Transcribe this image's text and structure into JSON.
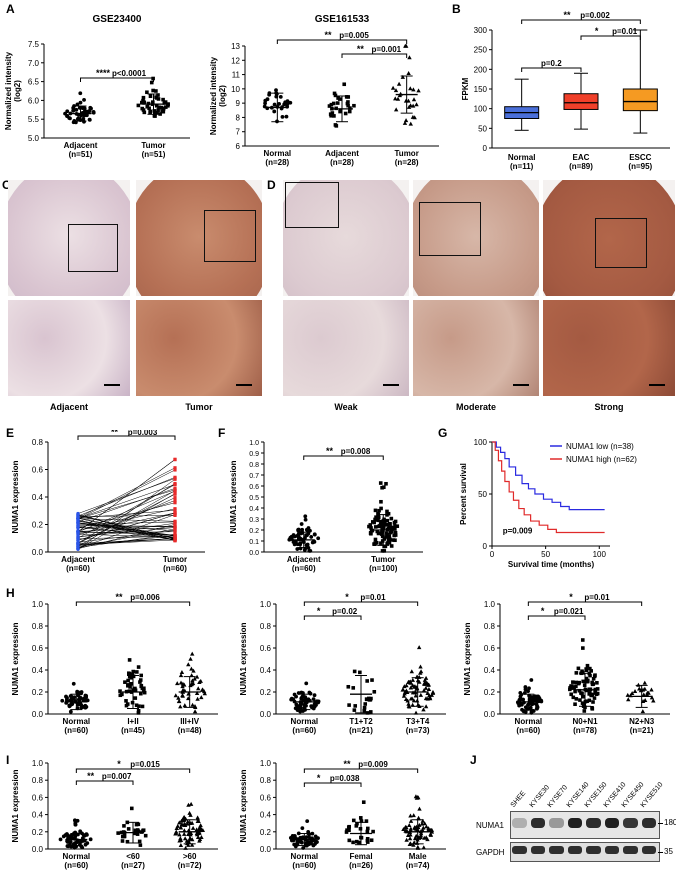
{
  "panels": {
    "A": "A",
    "B": "B",
    "C": "C",
    "D": "D",
    "E": "E",
    "F": "F",
    "G": "G",
    "H": "H",
    "I": "I",
    "J": "J"
  },
  "panelA1": {
    "title": "GSE23400",
    "ylabel": [
      "Normalized intensity",
      "(log2)"
    ],
    "yticks": [
      "5.0",
      "5.5",
      "6.0",
      "6.5",
      "7.0",
      "7.5"
    ],
    "groups": [
      {
        "name": "Adjacent",
        "n": "(n=51)"
      },
      {
        "name": "Tumor",
        "n": "(n=51)"
      }
    ],
    "sig": [
      {
        "stars": "****",
        "p": "p<0.0001"
      }
    ]
  },
  "panelA2": {
    "title": "GSE161533",
    "ylabel": [
      "Normalized intensity",
      "(log2)"
    ],
    "yticks": [
      "6",
      "7",
      "8",
      "9",
      "10",
      "11",
      "12",
      "13"
    ],
    "groups": [
      {
        "name": "Normal",
        "n": "(n=28)"
      },
      {
        "name": "Adjacent",
        "n": "(n=28)"
      },
      {
        "name": "Tumor",
        "n": "(n=28)"
      }
    ],
    "sig": [
      {
        "stars": "**",
        "p": "p=0.005"
      },
      {
        "stars": "**",
        "p": "p=0.001"
      }
    ]
  },
  "panelB": {
    "ylabel": "FPKM",
    "yticks": [
      "0",
      "50",
      "100",
      "150",
      "200",
      "250",
      "300"
    ],
    "groups": [
      {
        "name": "Normal",
        "n": "(n=11)",
        "color": "#4a6fd9"
      },
      {
        "name": "EAC",
        "n": "(n=89)",
        "color": "#f0402a"
      },
      {
        "name": "ESCC",
        "n": "(n=95)",
        "color": "#f59a22"
      }
    ],
    "sig": [
      {
        "stars": "**",
        "p": "p=0.002"
      },
      {
        "stars": "*",
        "p": "p=0.01"
      },
      {
        "stars": "",
        "p": "p=0.2"
      }
    ]
  },
  "panelC": {
    "captions": [
      "Adjacent",
      "Tumor"
    ]
  },
  "panelD": {
    "captions": [
      "Weak",
      "Moderate",
      "Strong"
    ]
  },
  "panelE": {
    "ylabel": "NUMA1 expression",
    "yticks": [
      "0.0",
      "0.2",
      "0.4",
      "0.6",
      "0.8"
    ],
    "groups": [
      {
        "name": "Adjacent",
        "n": "(n=60)"
      },
      {
        "name": "Tumor",
        "n": "(n=60)"
      }
    ],
    "sig": [
      {
        "stars": "**",
        "p": "p=0.003"
      }
    ]
  },
  "panelF": {
    "ylabel": "NUMA1 expression",
    "yticks": [
      "0.0",
      "0.1",
      "0.2",
      "0.3",
      "0.4",
      "0.5",
      "0.6",
      "0.7",
      "0.8",
      "0.9",
      "1.0"
    ],
    "groups": [
      {
        "name": "Adjacent",
        "n": "(n=60)"
      },
      {
        "name": "Tumor",
        "n": "(n=100)"
      }
    ],
    "sig": [
      {
        "stars": "**",
        "p": "p=0.008"
      }
    ]
  },
  "panelG": {
    "ylabel": "Percent survival",
    "xlabel": "Survival time (months)",
    "yticks": [
      "0",
      "50",
      "100"
    ],
    "xticks": [
      "0",
      "50",
      "100"
    ],
    "legend": [
      {
        "label": "NUMA1 low (n=38)",
        "color": "#2a2ae0"
      },
      {
        "label": "NUMA1 high (n=62)",
        "color": "#e02a2a"
      }
    ],
    "p": "p=0.009"
  },
  "panelH1": {
    "ylabel": "NUMA1 expression",
    "yticks": [
      "0.0",
      "0.2",
      "0.4",
      "0.6",
      "0.8",
      "1.0"
    ],
    "groups": [
      {
        "name": "Normal",
        "n": "(n=60)"
      },
      {
        "name": "I+II",
        "n": "(n=45)"
      },
      {
        "name": "III+IV",
        "n": "(n=48)"
      }
    ],
    "sig": [
      {
        "stars": "**",
        "p": "p=0.006"
      }
    ]
  },
  "panelH2": {
    "ylabel": "NUMA1 expression",
    "yticks": [
      "0.0",
      "0.2",
      "0.4",
      "0.6",
      "0.8",
      "1.0"
    ],
    "groups": [
      {
        "name": "Normal",
        "n": "(n=60)"
      },
      {
        "name": "T1+T2",
        "n": "(n=21)"
      },
      {
        "name": "T3+T4",
        "n": "(n=73)"
      }
    ],
    "sig": [
      {
        "stars": "*",
        "p": "p=0.01"
      },
      {
        "stars": "*",
        "p": "p=0.02"
      }
    ]
  },
  "panelH3": {
    "ylabel": "NUMA1 expression",
    "yticks": [
      "0.0",
      "0.2",
      "0.4",
      "0.6",
      "0.8",
      "1.0"
    ],
    "groups": [
      {
        "name": "Normal",
        "n": "(n=60)"
      },
      {
        "name": "N0+N1",
        "n": "(n=78)"
      },
      {
        "name": "N2+N3",
        "n": "(n=21)"
      }
    ],
    "sig": [
      {
        "stars": "*",
        "p": "p=0.01"
      },
      {
        "stars": "*",
        "p": "p=0.021"
      }
    ]
  },
  "panelI1": {
    "ylabel": "NUMA1 expression",
    "yticks": [
      "0.0",
      "0.2",
      "0.4",
      "0.6",
      "0.8",
      "1.0"
    ],
    "groups": [
      {
        "name": "Normal",
        "n": "(n=60)"
      },
      {
        "name": "<60",
        "n": "(n=27)"
      },
      {
        "name": ">60",
        "n": "(n=72)"
      }
    ],
    "sig": [
      {
        "stars": "*",
        "p": "p=0.015"
      },
      {
        "stars": "**",
        "p": "p=0.007"
      }
    ]
  },
  "panelI2": {
    "ylabel": "NUMA1 expression",
    "yticks": [
      "0.0",
      "0.2",
      "0.4",
      "0.6",
      "0.8",
      "1.0"
    ],
    "groups": [
      {
        "name": "Normal",
        "n": "(n=60)"
      },
      {
        "name": "Femal",
        "n": "(n=26)"
      },
      {
        "name": "Male",
        "n": "(n=74)"
      }
    ],
    "sig": [
      {
        "stars": "**",
        "p": "p=0.009"
      },
      {
        "stars": "*",
        "p": "p=0.038"
      }
    ]
  },
  "panelJ": {
    "lanes": [
      "SHEE",
      "KYSE30",
      "KYSE70",
      "KYSE140",
      "KYSE150",
      "KYSE410",
      "KYSE450",
      "KYSE510"
    ],
    "rows": [
      "NUMA1",
      "GAPDH"
    ],
    "markers": [
      "180",
      "35"
    ]
  }
}
